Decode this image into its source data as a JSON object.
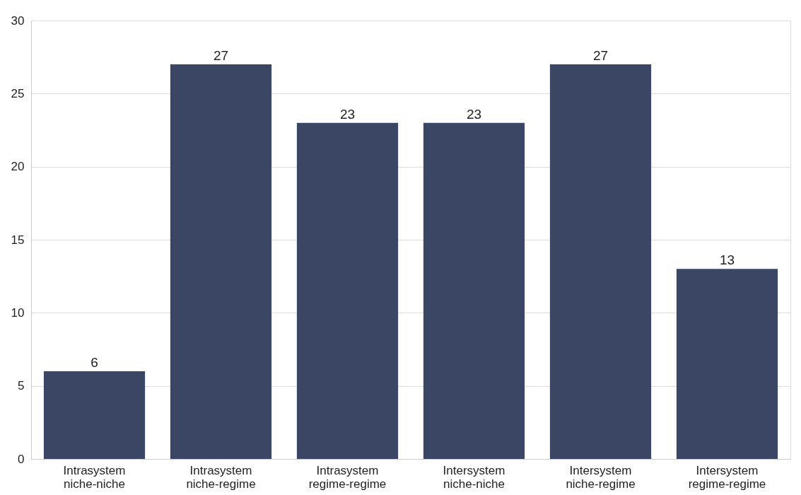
{
  "chart_data": {
    "type": "bar",
    "categories": [
      "Intrasystem niche-niche",
      "Intrasystem niche-regime",
      "Intrasystem regime-regime",
      "Intersystem niche-niche",
      "Intersystem niche-regime",
      "Intersystem regime-regime"
    ],
    "values": [
      6,
      27,
      23,
      23,
      27,
      13
    ],
    "color": "#3a4664",
    "ylim": [
      0,
      30
    ],
    "yticks": [
      0,
      5,
      10,
      15,
      20,
      25,
      30
    ],
    "grid": "y",
    "data_labels": true
  }
}
